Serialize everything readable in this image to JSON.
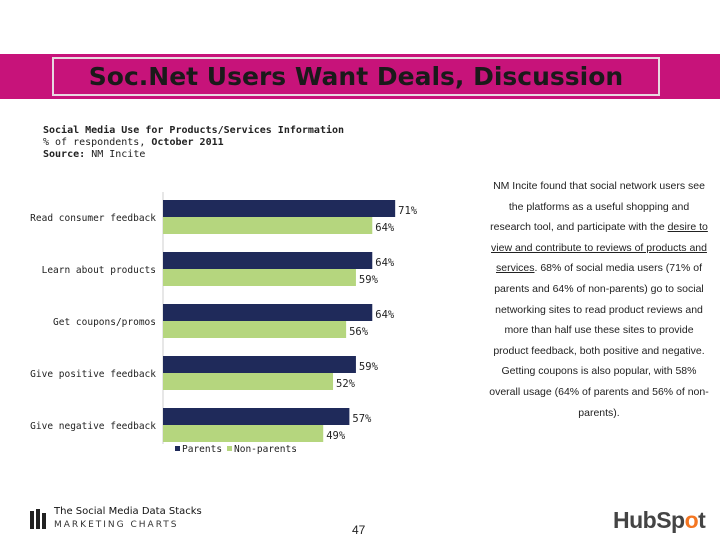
{
  "slide": {
    "title": "Soc.Net Users Want Deals, Discussion",
    "page_number": "47"
  },
  "chart_header": {
    "title": "Social Media Use for Products/Services Information",
    "subtitle_prefix": "% of respondents,",
    "subtitle_date": "October 2011",
    "source_label": "Source:",
    "source_value": "NM Incite"
  },
  "side_text": {
    "part1": "NM Incite found that social network users see the platforms as a useful shopping and research tool, and participate with the ",
    "link_text": "desire to view and contribute to reviews of products and services",
    "part2": ". 68% of social media users (71% of parents and 64% of non-parents) go to social networking sites to read product reviews and more than half use these sites to provide product feedback, both positive and negative. Getting coupons is also popular, with 58% overall usage (64% of parents and 56% of non-parents)."
  },
  "chart_data": {
    "type": "bar",
    "orientation": "horizontal",
    "categories": [
      "Read consumer feedback",
      "Learn about products",
      "Get coupons/promos",
      "Give positive feedback",
      "Give negative feedback"
    ],
    "series": [
      {
        "name": "Parents",
        "values": [
          71,
          64,
          64,
          59,
          57
        ],
        "labels": [
          "71%",
          "64%",
          "64%",
          "59%",
          "57%"
        ],
        "color": "#1f2a5a"
      },
      {
        "name": "Non-parents",
        "values": [
          64,
          59,
          56,
          52,
          49
        ],
        "labels": [
          "64%",
          "59%",
          "56%",
          "52%",
          "49%"
        ],
        "color": "#b5d67e"
      }
    ],
    "xlim": [
      0,
      100
    ],
    "legend": "bottom-left"
  },
  "footer": {
    "logo_title": "The Social Media Data Stacks",
    "logo_sub": "MARKETING CHARTS",
    "hubspot_pre": "HubSp",
    "hubspot_o": "o",
    "hubspot_post": "t"
  },
  "colors": {
    "title_bar": "#c7137a",
    "parents": "#1f2a5a",
    "non_parents": "#b5d67e",
    "hubspot_accent": "#f47622"
  }
}
